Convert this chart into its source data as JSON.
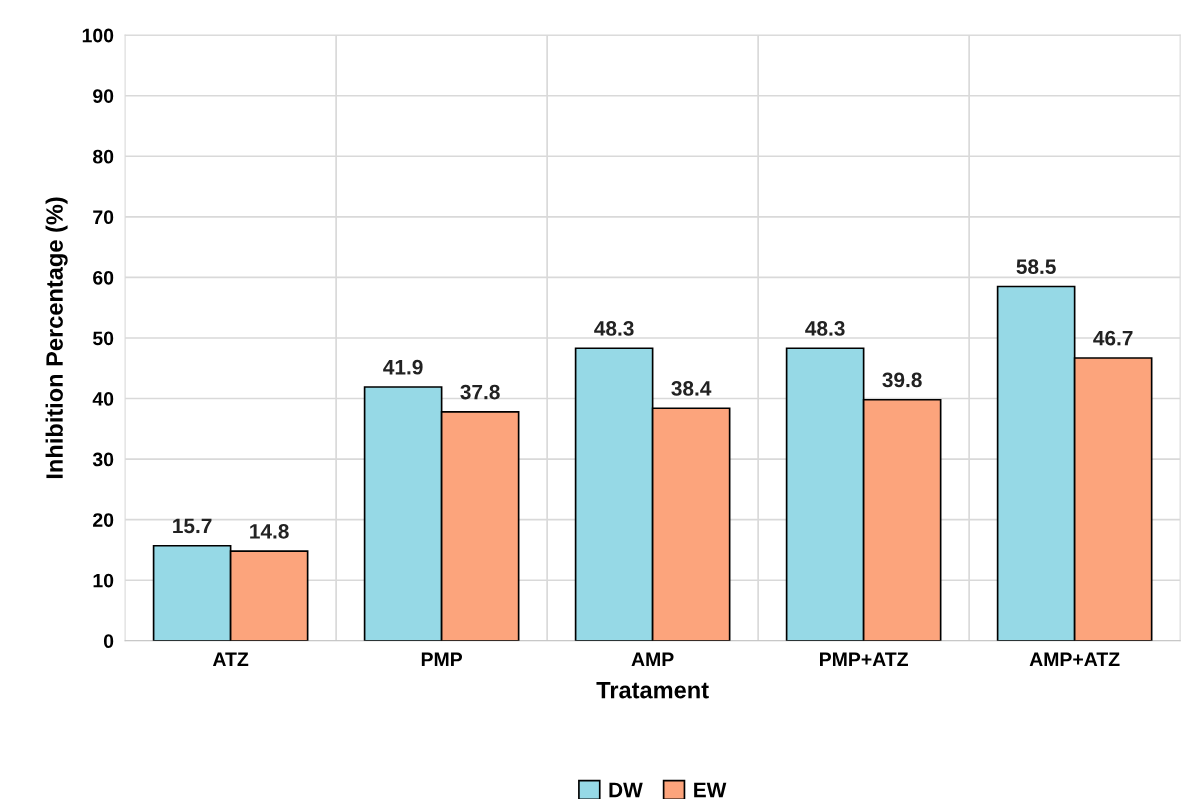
{
  "chart_data": {
    "type": "bar",
    "xlabel": "Tratament",
    "ylabel": "Inhibition Percentage (%)",
    "categories": [
      "ATZ",
      "PMP",
      "AMP",
      "PMP+ATZ",
      "AMP+ATZ"
    ],
    "series": [
      {
        "name": "DW",
        "color": "#96d9e6",
        "values": [
          15.7,
          41.9,
          48.3,
          48.3,
          58.5
        ]
      },
      {
        "name": "EW",
        "color": "#fca47c",
        "values": [
          14.8,
          37.8,
          38.4,
          39.8,
          46.7
        ]
      }
    ],
    "ylim": [
      0,
      100
    ],
    "yticks": [
      0,
      10,
      20,
      30,
      40,
      50,
      60,
      70,
      80,
      90,
      100
    ],
    "grid": true,
    "legend": "bottom",
    "data_labels": true
  }
}
